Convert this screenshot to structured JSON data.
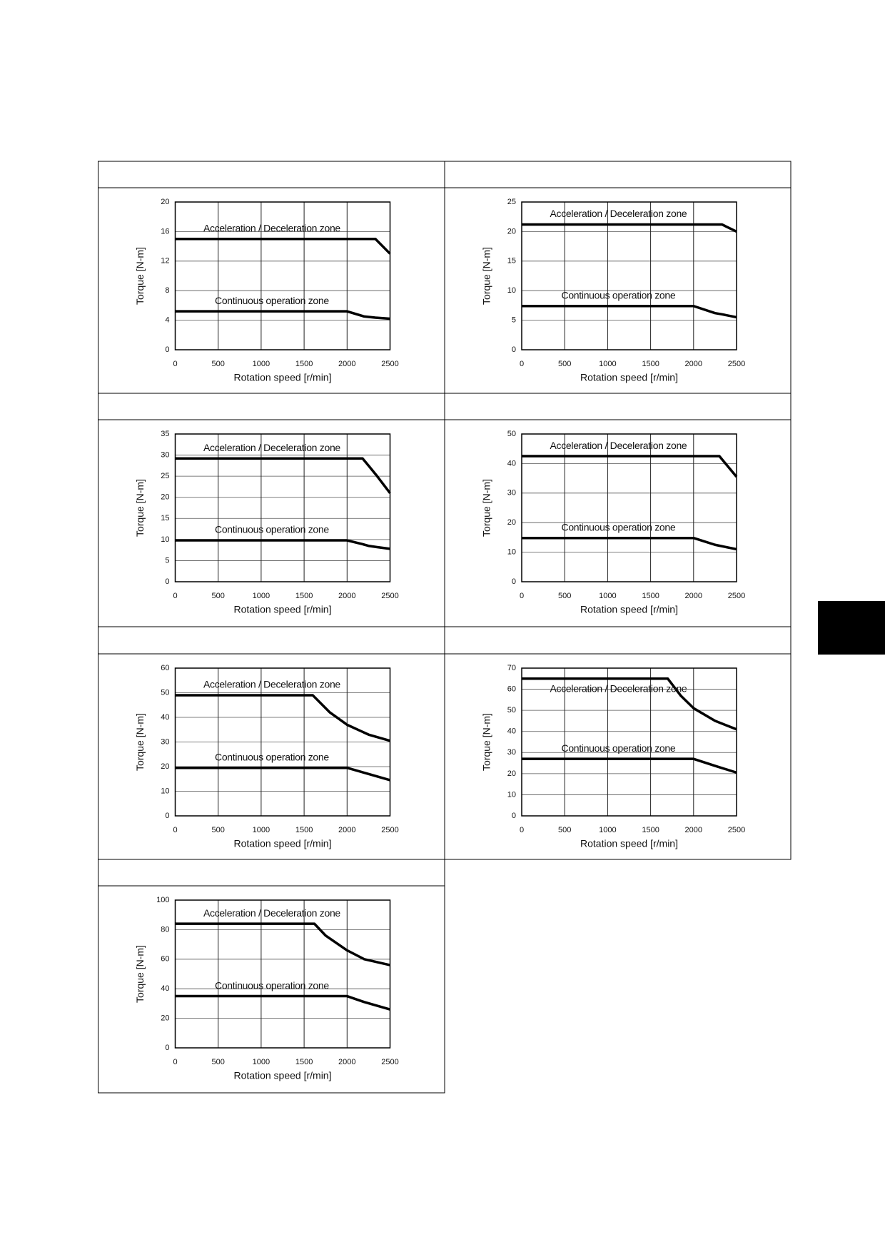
{
  "chart_data": [
    {
      "type": "line",
      "xlabel": "Rotation speed [r/min]",
      "ylabel": "Torque [N-m]",
      "x": [
        0,
        2000,
        2200,
        2330,
        2500
      ],
      "xlim": [
        0,
        2500
      ],
      "xticks": [
        0,
        500,
        1000,
        1500,
        2000,
        2500
      ],
      "ylim": [
        0,
        20
      ],
      "yticks": [
        0,
        4,
        8,
        12,
        16,
        20
      ],
      "grid": true,
      "series": [
        {
          "name": "Acceleration / Deceleration zone",
          "color": "#000000",
          "values": [
            15,
            15,
            15,
            15,
            13
          ]
        },
        {
          "name": "Continuous operation zone",
          "color": "#000000",
          "values": [
            5.2,
            5.2,
            4.5,
            4.35,
            4.2
          ]
        }
      ]
    },
    {
      "type": "line",
      "xlabel": "Rotation speed [r/min]",
      "ylabel": "Torque [N-m]",
      "x": [
        0,
        2000,
        2250,
        2330,
        2500
      ],
      "xlim": [
        0,
        2500
      ],
      "xticks": [
        0,
        500,
        1000,
        1500,
        2000,
        2500
      ],
      "ylim": [
        0,
        25
      ],
      "yticks": [
        0,
        5,
        10,
        15,
        20,
        25
      ],
      "grid": true,
      "series": [
        {
          "name": "Acceleration / Deceleration zone",
          "color": "#000000",
          "values": [
            21.2,
            21.2,
            21.2,
            21.2,
            20
          ]
        },
        {
          "name": "Continuous operation zone",
          "color": "#000000",
          "values": [
            7.4,
            7.4,
            6.2,
            6.0,
            5.5
          ]
        }
      ]
    },
    {
      "type": "line",
      "xlabel": "Rotation speed [r/min]",
      "ylabel": "Torque [N-m]",
      "x": [
        0,
        2000,
        2180,
        2250,
        2350,
        2500
      ],
      "xlim": [
        0,
        2500
      ],
      "xticks": [
        0,
        500,
        1000,
        1500,
        2000,
        2500
      ],
      "ylim": [
        0,
        35
      ],
      "yticks": [
        0,
        5,
        10,
        15,
        20,
        25,
        30,
        35
      ],
      "grid": true,
      "series": [
        {
          "name": "Acceleration / Deceleration zone",
          "color": "#000000",
          "values": [
            29.2,
            29.2,
            29.2,
            27.5,
            25,
            21
          ]
        },
        {
          "name": "Continuous operation zone",
          "color": "#000000",
          "values": [
            9.8,
            9.8,
            8.9,
            8.5,
            8.2,
            7.8
          ]
        }
      ]
    },
    {
      "type": "line",
      "xlabel": "Rotation speed [r/min]",
      "ylabel": "Torque [N-m]",
      "x": [
        0,
        2000,
        2250,
        2300,
        2500
      ],
      "xlim": [
        0,
        2500
      ],
      "xticks": [
        0,
        500,
        1000,
        1500,
        2000,
        2500
      ],
      "ylim": [
        0,
        50
      ],
      "yticks": [
        0,
        10,
        20,
        30,
        40,
        50
      ],
      "grid": true,
      "series": [
        {
          "name": "Acceleration / Deceleration zone",
          "color": "#000000",
          "values": [
            42.5,
            42.5,
            42.5,
            42.5,
            35.5
          ]
        },
        {
          "name": "Continuous operation zone",
          "color": "#000000",
          "values": [
            14.8,
            14.8,
            12.5,
            12.2,
            11
          ]
        }
      ]
    },
    {
      "type": "line",
      "xlabel": "Rotation speed [r/min]",
      "ylabel": "Torque [N-m]",
      "x": [
        0,
        1600,
        1800,
        2000,
        2250,
        2500
      ],
      "xlim": [
        0,
        2500
      ],
      "xticks": [
        0,
        500,
        1000,
        1500,
        2000,
        2500
      ],
      "ylim": [
        0,
        60
      ],
      "yticks": [
        0,
        10,
        20,
        30,
        40,
        50,
        60
      ],
      "grid": true,
      "series": [
        {
          "name": "Acceleration / Deceleration zone",
          "color": "#000000",
          "values": [
            49,
            49,
            42,
            37,
            33,
            30.5
          ]
        },
        {
          "name": "Continuous operation zone",
          "color": "#000000",
          "values": [
            19.5,
            19.5,
            19.5,
            19.5,
            17,
            14.5
          ]
        }
      ]
    },
    {
      "type": "line",
      "xlabel": "Rotation speed [r/min]",
      "ylabel": "Torque [N-m]",
      "x": [
        0,
        1700,
        1850,
        2000,
        2250,
        2500
      ],
      "xlim": [
        0,
        2500
      ],
      "xticks": [
        0,
        500,
        1000,
        1500,
        2000,
        2500
      ],
      "ylim": [
        0,
        70
      ],
      "yticks": [
        0,
        10,
        20,
        30,
        40,
        50,
        60,
        70
      ],
      "grid": true,
      "series": [
        {
          "name": "Acceleration / Deceleration zone",
          "color": "#000000",
          "values": [
            65,
            65,
            57,
            51,
            45,
            41
          ]
        },
        {
          "name": "Continuous operation zone",
          "color": "#000000",
          "values": [
            27,
            27,
            27,
            27,
            23.7,
            20.5
          ]
        }
      ]
    },
    {
      "type": "line",
      "xlabel": "Rotation speed [r/min]",
      "ylabel": "Torque [N-m]",
      "x": [
        0,
        1620,
        1750,
        2000,
        2200,
        2500
      ],
      "xlim": [
        0,
        2500
      ],
      "xticks": [
        0,
        500,
        1000,
        1500,
        2000,
        2500
      ],
      "ylim": [
        0,
        100
      ],
      "yticks": [
        0,
        20,
        40,
        60,
        80,
        100
      ],
      "grid": true,
      "series": [
        {
          "name": "Acceleration / Deceleration zone",
          "color": "#000000",
          "values": [
            84,
            84,
            76,
            66,
            60,
            56
          ]
        },
        {
          "name": "Continuous operation zone",
          "color": "#000000",
          "values": [
            35,
            35,
            35,
            35,
            31,
            26
          ]
        }
      ]
    }
  ]
}
